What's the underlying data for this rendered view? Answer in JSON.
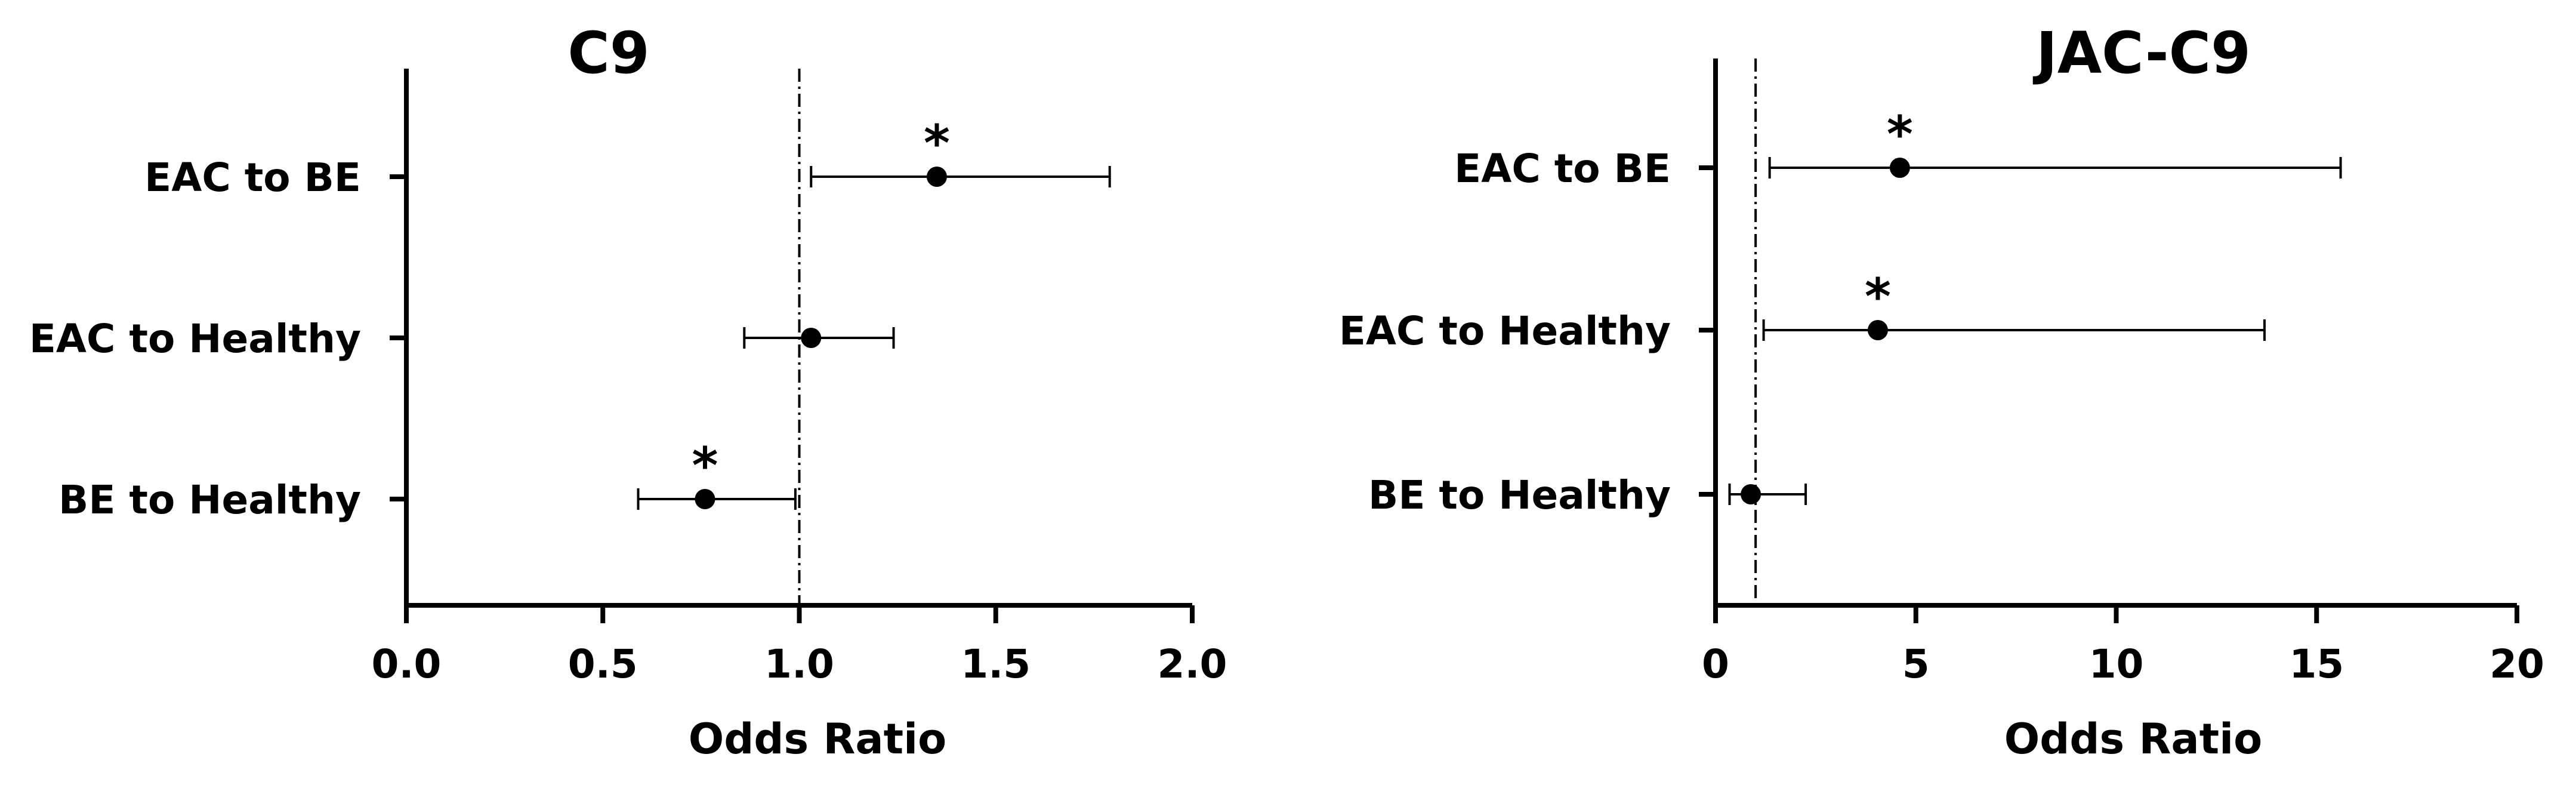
{
  "chart_data": [
    {
      "type": "forest",
      "title": "C9",
      "xlabel": "Odds Ratio",
      "xlim": [
        0.0,
        2.0
      ],
      "xticks": [
        "0.0",
        "0.5",
        "1.0",
        "1.5",
        "2.0"
      ],
      "xtick_values": [
        0.0,
        0.5,
        1.0,
        1.5,
        2.0
      ],
      "reference_line": 1.0,
      "categories": [
        "EAC to BE",
        "EAC to Healthy",
        "BE to Healthy"
      ],
      "points": [
        {
          "label": "EAC to BE",
          "odds_ratio": 1.35,
          "ci_low": 1.03,
          "ci_high": 1.79,
          "significance": "*"
        },
        {
          "label": "EAC to Healthy",
          "odds_ratio": 1.03,
          "ci_low": 0.86,
          "ci_high": 1.24,
          "significance": ""
        },
        {
          "label": "BE to Healthy",
          "odds_ratio": 0.76,
          "ci_low": 0.59,
          "ci_high": 0.99,
          "significance": "*"
        }
      ]
    },
    {
      "type": "forest",
      "title": "JAC-C9",
      "xlabel": "Odds Ratio",
      "xlim": [
        0,
        20
      ],
      "xticks": [
        "0",
        "5",
        "10",
        "15",
        "20"
      ],
      "xtick_values": [
        0,
        5,
        10,
        15,
        20
      ],
      "reference_line": 1.0,
      "categories": [
        "EAC to BE",
        "EAC to Healthy",
        "BE to Healthy"
      ],
      "points": [
        {
          "label": "EAC to BE",
          "odds_ratio": 4.6,
          "ci_low": 1.35,
          "ci_high": 15.6,
          "significance": "*"
        },
        {
          "label": "EAC to Healthy",
          "odds_ratio": 4.05,
          "ci_low": 1.2,
          "ci_high": 13.7,
          "significance": "*"
        },
        {
          "label": "BE to Healthy",
          "odds_ratio": 0.88,
          "ci_low": 0.35,
          "ci_high": 2.25,
          "significance": ""
        }
      ]
    }
  ]
}
